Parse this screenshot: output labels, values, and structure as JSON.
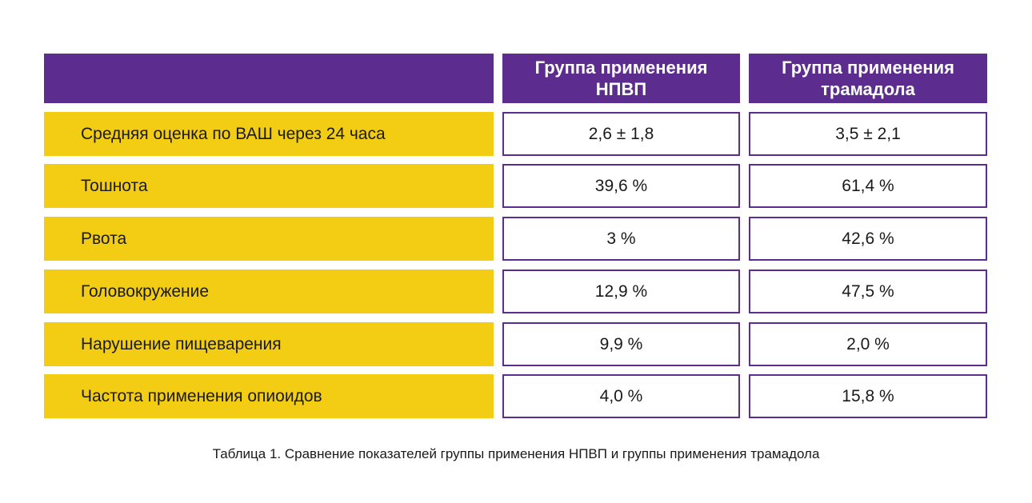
{
  "table": {
    "header": [
      "Группа применения НПВП",
      "Группа применения трамадола"
    ],
    "rows": [
      [
        "Средняя оценка по ВАШ через 24 часа",
        "2,6 ± 1,8",
        "3,5 ± 2,1"
      ],
      [
        "Тошнота",
        "39,6 %",
        "61,4 %"
      ],
      [
        "Рвота",
        "3 %",
        "42,6 %"
      ],
      [
        "Головокружение",
        "12,9 %",
        "47,5 %"
      ],
      [
        "Нарушение пищеварения",
        "9,9 %",
        "2,0 %"
      ],
      [
        "Частота применения опиоидов",
        "4,0 %",
        "15,8 %"
      ]
    ],
    "caption": "Таблица 1. Сравнение показателей группы применения НПВП и группы применения трамадола"
  }
}
